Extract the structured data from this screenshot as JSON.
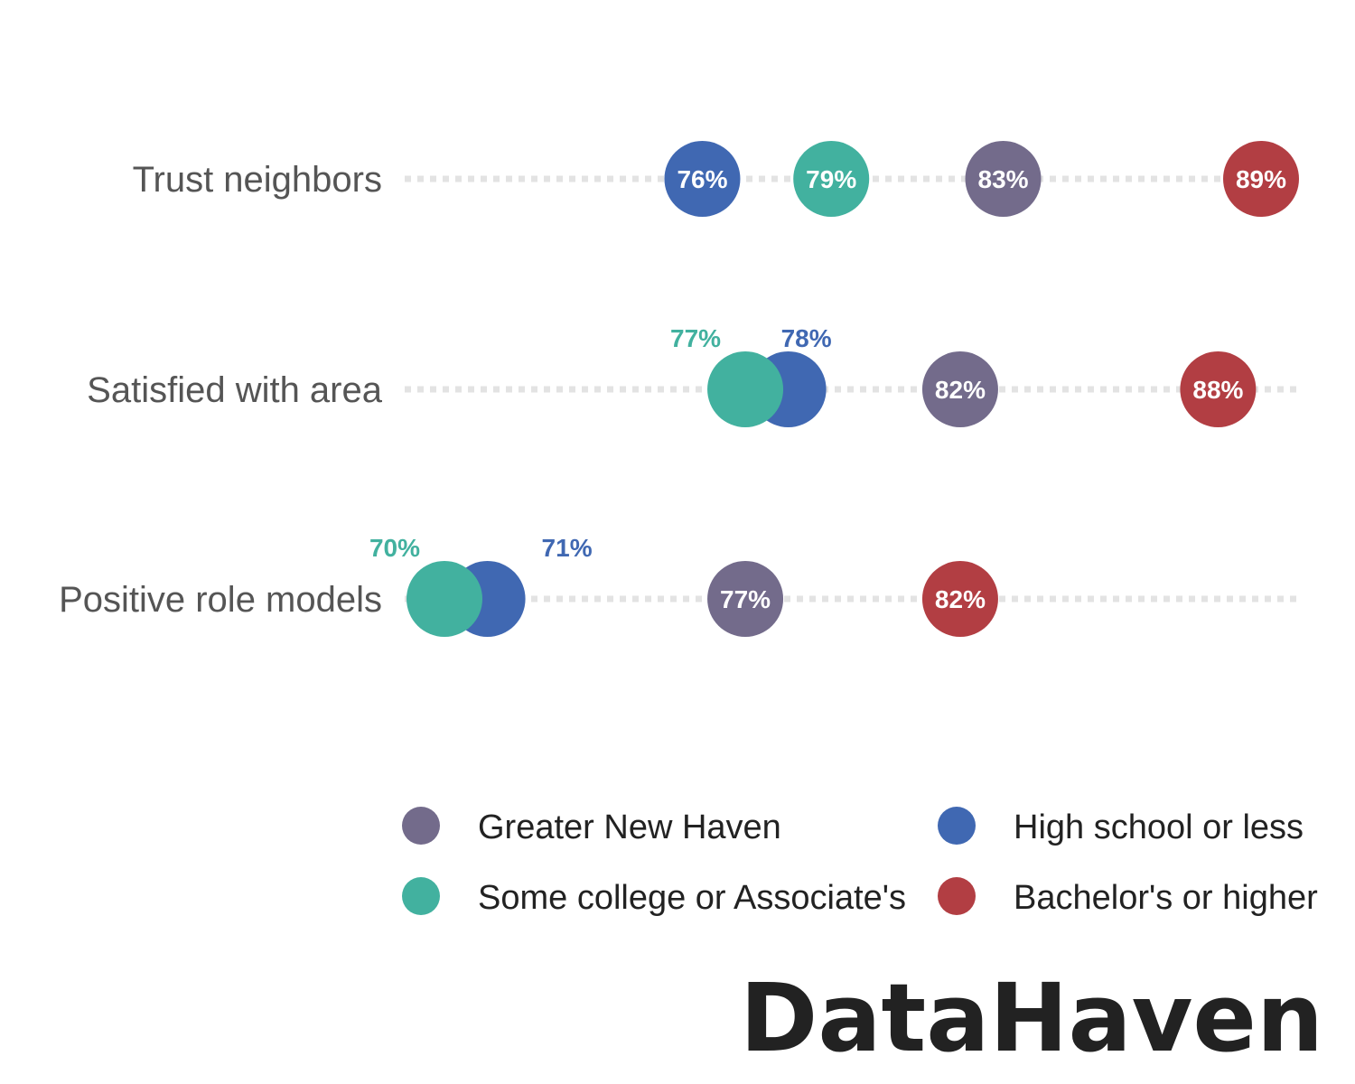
{
  "chart_data": {
    "type": "dot",
    "categories": [
      "Trust neighbors",
      "Satisfied with area",
      "Positive role models"
    ],
    "series": [
      {
        "name": "Greater New Haven",
        "color": "#736b8b",
        "values": [
          83,
          82,
          77
        ],
        "labels": [
          "83%",
          "82%",
          "77%"
        ]
      },
      {
        "name": "High school or less",
        "color": "#4068b2",
        "values": [
          76,
          78,
          71
        ],
        "labels": [
          "76%",
          "78%",
          "71%"
        ]
      },
      {
        "name": "Some college or Associate's",
        "color": "#42b19f",
        "values": [
          79,
          77,
          70
        ],
        "labels": [
          "79%",
          "77%",
          "70%"
        ]
      },
      {
        "name": "Bachelor's or higher",
        "color": "#b23e43",
        "values": [
          89,
          88,
          82
        ],
        "labels": [
          "89%",
          "88%",
          "82%"
        ]
      }
    ],
    "xlim": [
      70,
      89
    ],
    "legend_position": "bottom",
    "legend_order": [
      "Greater New Haven",
      "High school or less",
      "Some college or Associate's",
      "Bachelor's or higher"
    ]
  },
  "brand": {
    "logo_text": "DataHaven"
  }
}
